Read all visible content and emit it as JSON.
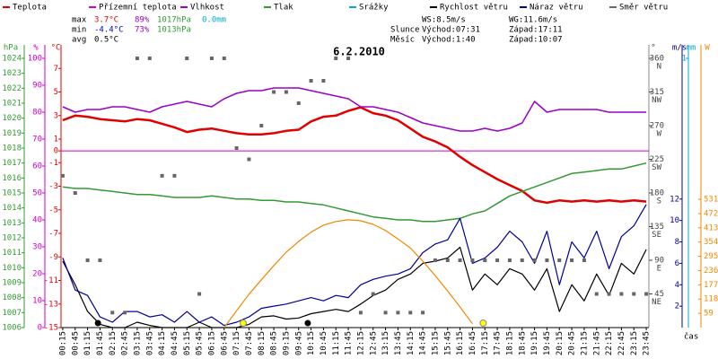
{
  "chart_data": {
    "type": "multi-axis-line",
    "title": "6.2.2010",
    "x_label": "čas",
    "legend": [
      {
        "name": "Teplota",
        "color": "#e00000"
      },
      {
        "name": "Přízemní teplota",
        "color": "#cc00cc"
      },
      {
        "name": "Vlhkost",
        "color": "#9900cc"
      },
      {
        "name": "Tlak",
        "color": "#339933"
      },
      {
        "name": "Srážky",
        "color": "#00aacc"
      },
      {
        "name": "Rychlost větru",
        "color": "#000000"
      },
      {
        "name": "Náraz větru",
        "color": "#000099"
      },
      {
        "name": "Směr větru",
        "color": "#666666"
      }
    ],
    "stats": [
      [
        "max",
        "3.7°C",
        "89%",
        "1017hPa",
        "0.0mm"
      ],
      [
        "min",
        "-4.4°C",
        "73%",
        "1013hPa"
      ],
      [
        "avg",
        "0.5°C"
      ]
    ],
    "info": [
      [
        "WS:8.5m/s",
        "WG:11.6m/s"
      ],
      [
        "Slunce",
        "Východ:07:31",
        "Západ:17:11"
      ],
      [
        "Měsíc",
        "Východ:1:40",
        "Západ:10:07"
      ]
    ],
    "xlim": [
      0,
      24
    ],
    "xticks": [
      {
        "value": 0.25,
        "label": "00:15"
      },
      {
        "value": 0.75,
        "label": "00:45"
      },
      {
        "value": 1.25,
        "label": "01:15"
      },
      {
        "value": 1.75,
        "label": "01:45"
      },
      {
        "value": 2.25,
        "label": "02:15"
      },
      {
        "value": 2.75,
        "label": "02:45"
      },
      {
        "value": 3.25,
        "label": "03:15"
      },
      {
        "value": 3.75,
        "label": "03:45"
      },
      {
        "value": 4.25,
        "label": "04:15"
      },
      {
        "value": 4.75,
        "label": "04:45"
      },
      {
        "value": 5.25,
        "label": "05:15"
      },
      {
        "value": 5.75,
        "label": "05:45"
      },
      {
        "value": 6.25,
        "label": "06:15"
      },
      {
        "value": 6.75,
        "label": "06:45"
      },
      {
        "value": 7.25,
        "label": "07:15"
      },
      {
        "value": 7.75,
        "label": "07:45"
      },
      {
        "value": 8.25,
        "label": "08:15"
      },
      {
        "value": 8.75,
        "label": "08:45"
      },
      {
        "value": 9.25,
        "label": "09:15"
      },
      {
        "value": 9.75,
        "label": "09:45"
      },
      {
        "value": 10.25,
        "label": "10:15"
      },
      {
        "value": 10.75,
        "label": "10:45"
      },
      {
        "value": 11.25,
        "label": "11:15"
      },
      {
        "value": 11.75,
        "label": "11:45"
      },
      {
        "value": 12.25,
        "label": "12:15"
      },
      {
        "value": 12.75,
        "label": "12:45"
      },
      {
        "value": 13.25,
        "label": "13:15"
      },
      {
        "value": 13.75,
        "label": "13:45"
      },
      {
        "value": 14.25,
        "label": "14:15"
      },
      {
        "value": 14.75,
        "label": "14:45"
      },
      {
        "value": 15.25,
        "label": "15:15"
      },
      {
        "value": 15.75,
        "label": "15:45"
      },
      {
        "value": 16.25,
        "label": "16:15"
      },
      {
        "value": 16.75,
        "label": "16:45"
      },
      {
        "value": 17.25,
        "label": "17:15"
      },
      {
        "value": 17.75,
        "label": "17:45"
      },
      {
        "value": 18.25,
        "label": "18:15"
      },
      {
        "value": 18.75,
        "label": "18:45"
      },
      {
        "value": 19.25,
        "label": "19:15"
      },
      {
        "value": 19.75,
        "label": "19:45"
      },
      {
        "value": 20.25,
        "label": "20:15"
      },
      {
        "value": 20.75,
        "label": "20:45"
      },
      {
        "value": 21.25,
        "label": "21:15"
      },
      {
        "value": 21.75,
        "label": "21:45"
      },
      {
        "value": 22.25,
        "label": "22:15"
      },
      {
        "value": 22.75,
        "label": "22:45"
      },
      {
        "value": 23.25,
        "label": "23:15"
      },
      {
        "value": 23.75,
        "label": "23:45"
      }
    ],
    "x": [
      0.25,
      0.75,
      1.25,
      1.75,
      2.25,
      2.75,
      3.25,
      3.75,
      4.25,
      4.75,
      5.25,
      5.75,
      6.25,
      6.75,
      7.25,
      7.75,
      8.25,
      8.75,
      9.25,
      9.75,
      10.25,
      10.75,
      11.25,
      11.75,
      12.25,
      12.75,
      13.25,
      13.75,
      14.25,
      14.75,
      15.25,
      15.75,
      16.25,
      16.75,
      17.25,
      17.75,
      18.25,
      18.75,
      19.25,
      19.75,
      20.25,
      20.75,
      21.25,
      21.75,
      22.25,
      22.75,
      23.25,
      23.75
    ],
    "axes": {
      "hPa": {
        "label": "hPa",
        "color": "#339933",
        "lim": [
          1006,
          1024.9
        ],
        "ticks": [
          1006,
          1007,
          1008,
          1009,
          1010,
          1011,
          1012,
          1013,
          1014,
          1015,
          1016,
          1017,
          1018,
          1019,
          1020,
          1021,
          1022,
          1023,
          1024
        ]
      },
      "pct": {
        "label": "%",
        "color": "#cc00cc",
        "lim": [
          0,
          105
        ],
        "ticks": [
          0,
          10,
          20,
          30,
          40,
          50,
          60,
          70,
          80,
          90,
          100
        ]
      },
      "C": {
        "label": "°C",
        "color": "#e00000",
        "lim": [
          -15,
          9
        ],
        "ticks": [
          -15,
          -13,
          -11,
          -9,
          -7,
          -5,
          -3,
          -1,
          0,
          1,
          3,
          5,
          7
        ]
      },
      "deg": {
        "label": "°",
        "color": "#444444",
        "lim": [
          0,
          378
        ],
        "ticks": [
          45,
          90,
          135,
          180,
          225,
          270,
          315,
          360
        ],
        "compass": [
          "NE",
          "E",
          "SE",
          "S",
          "SW",
          "W",
          "NW",
          "N"
        ]
      },
      "ms": {
        "label": "m/s",
        "color": "#000099",
        "lim": [
          0,
          26.4
        ],
        "ticks": [
          2,
          4,
          6,
          8,
          10,
          12
        ]
      },
      "mm": {
        "label": "mm",
        "color": "#00aacc",
        "lim": [
          0,
          1.05
        ],
        "ticks": [
          1
        ]
      },
      "W": {
        "label": "W",
        "color": "#ee8800",
        "lim": [
          0,
          1170
        ],
        "ticks": [
          59,
          118,
          177,
          236,
          295,
          354,
          413,
          472,
          531
        ]
      }
    },
    "zero_line": {
      "axis": "C",
      "color": "#cc00cc"
    },
    "series": [
      {
        "legend": 0,
        "axis": "C",
        "color": "#e00000",
        "width": 2.5,
        "values": [
          2.6,
          3.0,
          2.9,
          2.7,
          2.6,
          2.5,
          2.7,
          2.6,
          2.3,
          2.0,
          1.6,
          1.8,
          1.9,
          1.7,
          1.5,
          1.4,
          1.4,
          1.5,
          1.7,
          1.8,
          2.5,
          2.9,
          3.0,
          3.4,
          3.7,
          3.2,
          3.0,
          2.6,
          1.9,
          1.2,
          0.8,
          0.3,
          -0.5,
          -1.2,
          -1.8,
          -2.4,
          -2.9,
          -3.4,
          -4.2,
          -4.4,
          -4.2,
          -4.3,
          -4.2,
          -4.3,
          -4.2,
          -4.3,
          -4.2,
          -4.3
        ]
      },
      {
        "legend": 2,
        "axis": "pct",
        "color": "#9900cc",
        "width": 1.5,
        "values": [
          82,
          80,
          81,
          81,
          82,
          82,
          81,
          80,
          82,
          83,
          84,
          83,
          82,
          85,
          87,
          88,
          88,
          89,
          89,
          89,
          88,
          87,
          86,
          85,
          82,
          82,
          81,
          80,
          78,
          76,
          75,
          74,
          73,
          73,
          74,
          73,
          74,
          76,
          84,
          80,
          81,
          81,
          81,
          81,
          80,
          80,
          80,
          80
        ]
      },
      {
        "legend": 3,
        "axis": "hPa",
        "color": "#339933",
        "width": 1.5,
        "values": [
          1015.4,
          1015.3,
          1015.3,
          1015.2,
          1015.1,
          1015.0,
          1014.9,
          1014.9,
          1014.8,
          1014.7,
          1014.7,
          1014.7,
          1014.8,
          1014.7,
          1014.6,
          1014.6,
          1014.5,
          1014.5,
          1014.4,
          1014.4,
          1014.3,
          1014.2,
          1014.0,
          1013.8,
          1013.6,
          1013.4,
          1013.3,
          1013.2,
          1013.2,
          1013.1,
          1013.1,
          1013.2,
          1013.3,
          1013.6,
          1013.8,
          1014.3,
          1014.8,
          1015.1,
          1015.4,
          1015.7,
          1016.0,
          1016.3,
          1016.4,
          1016.5,
          1016.6,
          1016.6,
          1016.8,
          1017.0
        ]
      },
      {
        "legend": 5,
        "axis": "ms",
        "color": "#000000",
        "width": 1.2,
        "values": [
          6.2,
          4.0,
          1.5,
          0.3,
          0,
          0,
          0.5,
          0.2,
          0,
          0,
          0,
          0.5,
          0,
          0,
          0,
          0.3,
          1.0,
          1.1,
          0.8,
          0.9,
          1.3,
          1.5,
          1.7,
          1.5,
          2.2,
          3.0,
          3.5,
          4.5,
          5.0,
          6.0,
          6.2,
          6.5,
          7.5,
          3.5,
          5.0,
          4.0,
          5.5,
          5.0,
          3.5,
          5.5,
          1.5,
          4.0,
          2.5,
          5.0,
          3.0,
          6.0,
          5.0,
          7.3
        ]
      },
      {
        "legend": 6,
        "axis": "ms",
        "color": "#000099",
        "width": 1.2,
        "values": [
          6.5,
          3.5,
          3.0,
          1.0,
          0.5,
          1.5,
          1.5,
          1.0,
          1.2,
          0.5,
          1.5,
          0.5,
          1.0,
          0.2,
          0.5,
          1.0,
          1.8,
          2.0,
          2.2,
          2.5,
          2.8,
          2.5,
          3.0,
          2.8,
          4.0,
          4.5,
          4.8,
          5.0,
          5.5,
          7.0,
          7.8,
          8.2,
          10.2,
          6.0,
          6.5,
          7.5,
          9.0,
          8.0,
          6.0,
          9.0,
          4.0,
          8.0,
          6.5,
          9.0,
          5.5,
          8.5,
          9.5,
          11.5
        ]
      },
      {
        "axis": "W",
        "color": "#ee8800",
        "width": 1.2,
        "values": [
          null,
          null,
          null,
          null,
          null,
          null,
          null,
          null,
          null,
          null,
          null,
          null,
          null,
          0,
          70,
          138,
          198,
          257,
          312,
          357,
          395,
          424,
          439,
          446,
          442,
          427,
          402,
          367,
          329,
          275,
          215,
          151,
          85,
          16,
          null,
          null,
          null,
          null,
          null,
          null,
          null,
          null,
          null,
          null,
          null,
          null,
          null,
          null
        ]
      },
      {
        "legend": 7,
        "axis": "deg",
        "color": "#666666",
        "points": true,
        "values": [
          203,
          180,
          90,
          90,
          20,
          20,
          360,
          360,
          203,
          203,
          360,
          45,
          360,
          360,
          240,
          225,
          270,
          315,
          315,
          300,
          330,
          330,
          360,
          360,
          20,
          45,
          20,
          20,
          20,
          20,
          90,
          90,
          90,
          90,
          90,
          90,
          90,
          90,
          90,
          90,
          90,
          90,
          90,
          45,
          45,
          45,
          45,
          45
        ]
      }
    ],
    "sun_x": [
      7.517,
      17.183
    ],
    "moon_x": [
      1.667,
      10.117
    ]
  }
}
